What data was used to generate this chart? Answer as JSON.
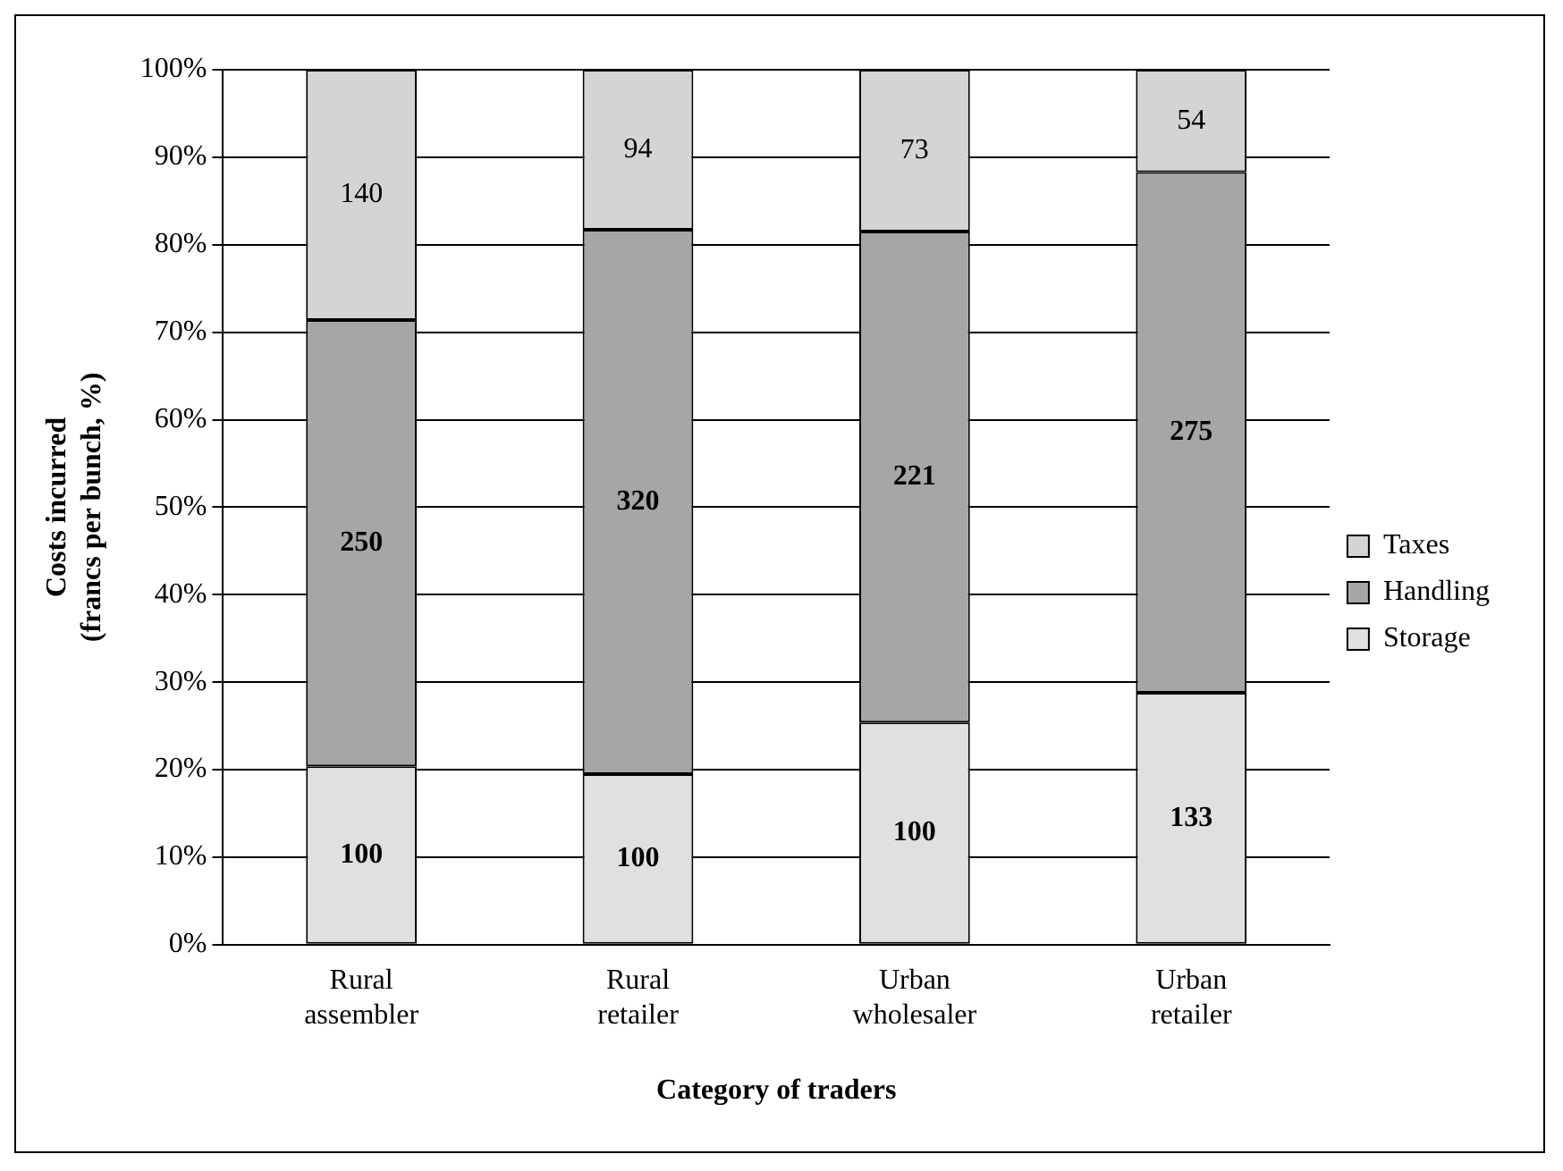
{
  "chart_data": {
    "type": "bar",
    "stacked": true,
    "xlabel": "Category of traders",
    "ylabel": "Costs incurred\n(francs per bunch, %)",
    "categories": [
      "Rural assembler",
      "Rural retailer",
      "Urban wholesaler",
      "Urban retailer"
    ],
    "series": [
      {
        "name": "Storage",
        "color": "#e0e0e0",
        "values": [
          20.4,
          19.5,
          25.4,
          28.8
        ]
      },
      {
        "name": "Handling",
        "color": "#a6a6a6",
        "values": [
          51.0,
          62.2,
          56.1,
          59.5
        ]
      },
      {
        "name": "Taxes",
        "color": "#d4d4d4",
        "values": [
          28.6,
          18.3,
          18.5,
          11.7
        ]
      }
    ],
    "ylim": [
      0,
      100
    ],
    "yticks": [
      {
        "value": 0,
        "label": "0%"
      },
      {
        "value": 10,
        "label": "10%"
      },
      {
        "value": 20,
        "label": "20%"
      },
      {
        "value": 30,
        "label": "30%"
      },
      {
        "value": 40,
        "label": "40%"
      },
      {
        "value": 50,
        "label": "50%"
      },
      {
        "value": 60,
        "label": "60%"
      },
      {
        "value": 70,
        "label": "70%"
      },
      {
        "value": 80,
        "label": "80%"
      },
      {
        "value": 90,
        "label": "90%"
      },
      {
        "value": 100,
        "label": "100%"
      }
    ],
    "annotations": [
      "100",
      "250",
      "140",
      "100",
      "320",
      "94",
      "100",
      "221",
      "73",
      "133",
      "275",
      "54"
    ],
    "grid": "y",
    "legend": "right"
  }
}
